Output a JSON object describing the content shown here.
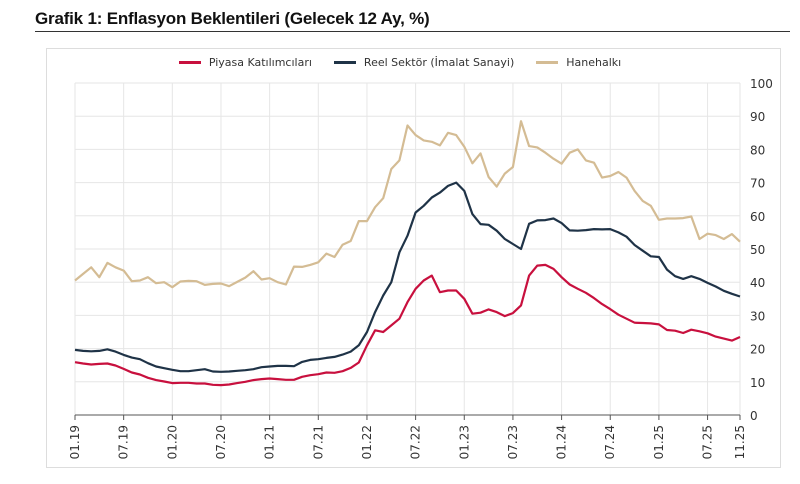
{
  "title": "Grafik 1: Enflasyon Beklentileri (Gelecek 12 Ay, %)",
  "chart_data": {
    "type": "line",
    "title": "Grafik 1: Enflasyon Beklentileri (Gelecek 12 Ay, %)",
    "x_start": "01.19",
    "x_end": "11.25",
    "x_frequency": "monthly",
    "x_tick_labels": [
      "01.19",
      "07.19",
      "01.20",
      "07.20",
      "01.21",
      "07.21",
      "01.22",
      "07.22",
      "01.23",
      "07.23",
      "01.24",
      "07.24",
      "01.25",
      "07.25",
      "11.25"
    ],
    "y_tick_labels": [
      "0",
      "10",
      "20",
      "30",
      "40",
      "50",
      "60",
      "70",
      "80",
      "90",
      "100"
    ],
    "ylim": [
      0,
      100
    ],
    "y_axis_side": "right",
    "grid": true,
    "legend_position": "top-center",
    "series": [
      {
        "name": "Piyasa Katılımcıları",
        "color": "#c8103e",
        "values": [
          15.9,
          15.5,
          15.2,
          15.4,
          15.5,
          14.9,
          13.9,
          12.8,
          12.2,
          11.2,
          10.5,
          10.1,
          9.6,
          9.7,
          9.7,
          9.5,
          9.5,
          9.1,
          9.0,
          9.2,
          9.6,
          10.0,
          10.5,
          10.8,
          11.0,
          10.8,
          10.6,
          10.6,
          11.5,
          12.0,
          12.3,
          12.8,
          12.7,
          13.2,
          14.2,
          15.8,
          21.0,
          25.5,
          25.0,
          27.0,
          29.0,
          34.0,
          38.0,
          40.5,
          42.0,
          37.0,
          37.5,
          37.5,
          35.0,
          30.5,
          30.8,
          31.8,
          31.0,
          29.8,
          30.7,
          33.0,
          42.0,
          45.0,
          45.2,
          44.0,
          41.5,
          39.3,
          38.0,
          36.8,
          35.2,
          33.4,
          31.9,
          30.2,
          29.0,
          27.8,
          27.7,
          27.6,
          27.3,
          25.6,
          25.4,
          24.7,
          25.7,
          25.2,
          24.6,
          23.6,
          23.0,
          22.4,
          23.5
        ]
      },
      {
        "name": "Reel Sektör (İmalat Sanayi)",
        "color": "#1f3347",
        "values": [
          19.6,
          19.3,
          19.2,
          19.3,
          19.8,
          19.1,
          18.1,
          17.3,
          16.8,
          15.6,
          14.6,
          14.1,
          13.6,
          13.2,
          13.2,
          13.5,
          13.8,
          13.1,
          13.0,
          13.1,
          13.3,
          13.5,
          13.8,
          14.4,
          14.6,
          14.8,
          14.8,
          14.7,
          16.0,
          16.6,
          16.8,
          17.2,
          17.5,
          18.2,
          19.1,
          21.0,
          25.0,
          31.0,
          36.0,
          40.0,
          49.0,
          54.0,
          61.0,
          63.0,
          65.5,
          67.0,
          69.0,
          70.0,
          67.5,
          60.5,
          57.5,
          57.3,
          55.5,
          53.0,
          51.5,
          50.0,
          57.6,
          58.6,
          58.7,
          59.2,
          57.8,
          55.6,
          55.5,
          55.7,
          56.0,
          55.9,
          56.0,
          55.0,
          53.7,
          51.2,
          49.5,
          47.8,
          47.6,
          43.8,
          41.8,
          41.0,
          41.8,
          41.0,
          39.8,
          38.7,
          37.4,
          36.5,
          35.7
        ]
      },
      {
        "name": "Hanehalkı",
        "color": "#d4bc94",
        "values": [
          40.5,
          42.5,
          44.5,
          41.5,
          45.8,
          44.5,
          43.5,
          40.3,
          40.5,
          41.5,
          39.7,
          40.0,
          38.5,
          40.2,
          40.4,
          40.3,
          39.2,
          39.5,
          39.6,
          38.8,
          40.1,
          41.4,
          43.3,
          40.8,
          41.2,
          40.0,
          39.3,
          44.7,
          44.6,
          45.2,
          46.0,
          48.6,
          47.6,
          51.3,
          52.4,
          58.4,
          58.4,
          62.6,
          65.3,
          74.1,
          76.7,
          87.2,
          84.3,
          82.7,
          82.3,
          81.2,
          85.0,
          84.3,
          80.8,
          75.8,
          78.8,
          71.7,
          68.8,
          72.7,
          74.7,
          88.5,
          81.0,
          80.6,
          79.0,
          77.2,
          75.7,
          79.0,
          80.0,
          76.7,
          76.0,
          71.5,
          72.0,
          73.2,
          71.5,
          67.5,
          64.5,
          63.0,
          58.8,
          59.2,
          59.2,
          59.3,
          59.8,
          53.0,
          54.6,
          54.2,
          53.0,
          54.5,
          52.2
        ]
      }
    ]
  }
}
